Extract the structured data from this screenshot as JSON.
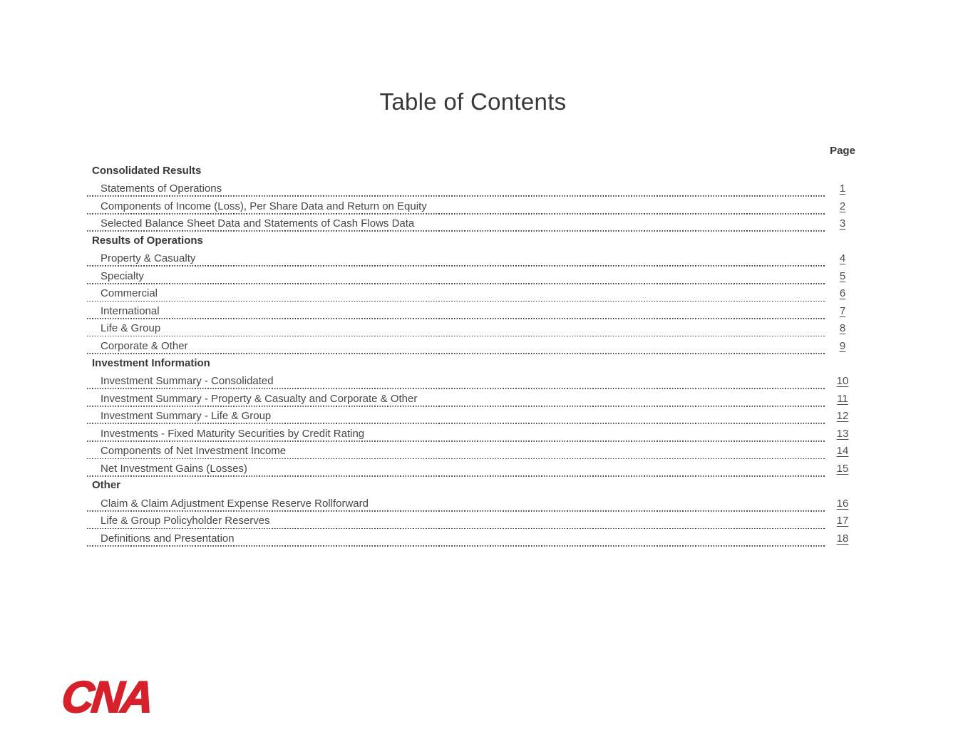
{
  "document": {
    "title": "Table of Contents",
    "page_column_header": "Page"
  },
  "toc": {
    "sections": [
      {
        "header": "Consolidated Results",
        "items": [
          {
            "label": "Statements of Operations",
            "page": "1"
          },
          {
            "label": "Components of Income (Loss), Per Share Data and Return on Equity",
            "page": "2"
          },
          {
            "label": "Selected Balance Sheet Data and Statements of Cash Flows Data",
            "page": "3"
          }
        ]
      },
      {
        "header": "Results of Operations",
        "items": [
          {
            "label": "Property & Casualty",
            "page": "4"
          },
          {
            "label": "Specialty",
            "page": "5"
          },
          {
            "label": "Commercial",
            "page": "6"
          },
          {
            "label": "International",
            "page": "7"
          },
          {
            "label": "Life & Group",
            "page": "8"
          },
          {
            "label": "Corporate & Other",
            "page": "9"
          }
        ]
      },
      {
        "header": "Investment Information",
        "items": [
          {
            "label": "Investment Summary - Consolidated",
            "page": "10"
          },
          {
            "label": "Investment Summary - Property & Casualty and Corporate & Other",
            "page": "11"
          },
          {
            "label": "Investment Summary - Life & Group",
            "page": "12"
          },
          {
            "label": "Investments - Fixed Maturity Securities by Credit Rating",
            "page": "13"
          },
          {
            "label": "Components of Net Investment Income",
            "page": "14"
          },
          {
            "label": "Net Investment Gains (Losses)",
            "page": "15"
          }
        ]
      },
      {
        "header": "Other",
        "items": [
          {
            "label": "Claim & Claim Adjustment Expense Reserve Rollforward",
            "page": "16"
          },
          {
            "label": "Life & Group Policyholder Reserves",
            "page": "17"
          },
          {
            "label": "Definitions and Presentation",
            "page": "18"
          }
        ]
      }
    ]
  },
  "footer": {
    "logo_text": "CNA"
  },
  "colors": {
    "brand_red": "#d6202b",
    "heading_text": "#383838",
    "item_text": "#474747",
    "leader_dots": "#3a3a3c",
    "page_number": "#4d4d4d"
  }
}
